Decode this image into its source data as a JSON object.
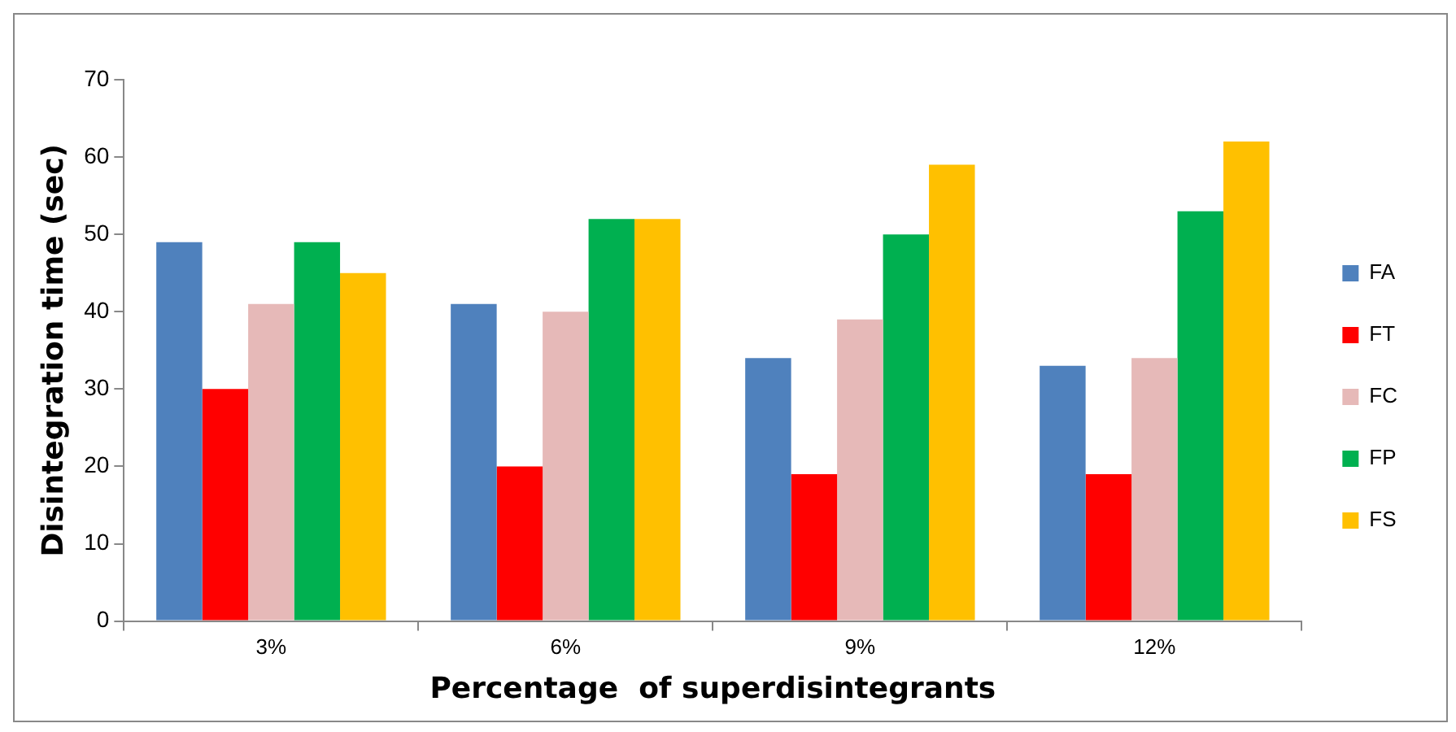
{
  "chart_data": {
    "type": "bar",
    "xlabel": "Percentage  of superdisintegrants",
    "ylabel": "Disintegration time (sec)",
    "categories": [
      "3%",
      "6%",
      "9%",
      "12%"
    ],
    "series": [
      {
        "name": "FA",
        "color": "#4f81bd",
        "values": [
          49,
          41,
          34,
          33
        ]
      },
      {
        "name": "FT",
        "color": "#ff0000",
        "values": [
          30,
          20,
          19,
          19
        ]
      },
      {
        "name": "FC",
        "color": "#e6b9b8",
        "values": [
          41,
          40,
          39,
          34
        ]
      },
      {
        "name": "FP",
        "color": "#00b050",
        "values": [
          49,
          52,
          50,
          53
        ]
      },
      {
        "name": "FS",
        "color": "#ffc000",
        "values": [
          45,
          52,
          59,
          62
        ]
      }
    ],
    "ylim": [
      0,
      70
    ],
    "yticks": [
      0,
      10,
      20,
      30,
      40,
      50,
      60,
      70
    ],
    "grid": false,
    "legend": "right"
  }
}
